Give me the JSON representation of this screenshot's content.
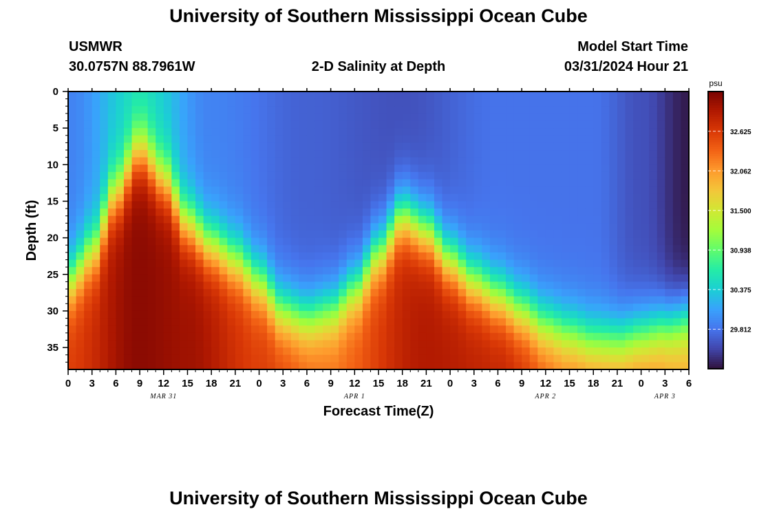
{
  "header": {
    "title": "University of Southern Mississippi Ocean Cube",
    "station": "USMWR",
    "coords": "30.0757N  88.7961W",
    "subtitle": "2-D Salinity at Depth",
    "start_label": "Model Start Time",
    "start_value": "03/31/2024 Hour 21"
  },
  "footer": {
    "title": "University of Southern Mississippi Ocean Cube"
  },
  "chart_data": {
    "type": "heatmap",
    "title": "2-D Salinity at Depth",
    "xlabel": "Forecast Time(Z)",
    "ylabel": "Depth (ft)",
    "x_ticks": [
      "0",
      "3",
      "6",
      "9",
      "12",
      "15",
      "18",
      "21",
      "0",
      "3",
      "6",
      "9",
      "12",
      "15",
      "18",
      "21",
      "0",
      "3",
      "6",
      "9",
      "12",
      "15",
      "18",
      "21",
      "0",
      "3",
      "6"
    ],
    "x_range_hours": [
      0,
      78
    ],
    "date_labels": [
      {
        "label": "MAR 31",
        "hour": 12
      },
      {
        "label": "APR 1",
        "hour": 36
      },
      {
        "label": "APR 2",
        "hour": 60
      },
      {
        "label": "APR 3",
        "hour": 75
      }
    ],
    "y_ticks": [
      "0",
      "5",
      "10",
      "15",
      "20",
      "25",
      "30",
      "35"
    ],
    "y_range": [
      0,
      38
    ],
    "y_inverted": true,
    "colorbar": {
      "unit": "psu",
      "min": 29.25,
      "max": 33.19,
      "tick_labels": [
        "32.625",
        "32.062",
        "31.500",
        "30.938",
        "30.375",
        "29.812"
      ],
      "colors": [
        "#30123b",
        "#4145ab",
        "#4675ed",
        "#39a2fc",
        "#1bcfd4",
        "#24eca6",
        "#61fc6c",
        "#a4fc3b",
        "#d1e834",
        "#f3c63a",
        "#fe9b2d",
        "#f36315",
        "#d93806",
        "#b11901",
        "#7a0402"
      ]
    },
    "halocline_depth_ft": [
      {
        "hour": 0,
        "depth": 26
      },
      {
        "hour": 3,
        "depth": 22
      },
      {
        "hour": 6,
        "depth": 14
      },
      {
        "hour": 9,
        "depth": 8
      },
      {
        "hour": 12,
        "depth": 12
      },
      {
        "hour": 15,
        "depth": 18
      },
      {
        "hour": 18,
        "depth": 21
      },
      {
        "hour": 21,
        "depth": 23
      },
      {
        "hour": 24,
        "depth": 26
      },
      {
        "hour": 27,
        "depth": 30
      },
      {
        "hour": 30,
        "depth": 31
      },
      {
        "hour": 33,
        "depth": 30
      },
      {
        "hour": 36,
        "depth": 27
      },
      {
        "hour": 39,
        "depth": 22
      },
      {
        "hour": 42,
        "depth": 17
      },
      {
        "hour": 45,
        "depth": 19
      },
      {
        "hour": 48,
        "depth": 23
      },
      {
        "hour": 51,
        "depth": 26
      },
      {
        "hour": 54,
        "depth": 28
      },
      {
        "hour": 57,
        "depth": 30
      },
      {
        "hour": 60,
        "depth": 32
      },
      {
        "hour": 63,
        "depth": 33
      },
      {
        "hour": 66,
        "depth": 34
      },
      {
        "hour": 69,
        "depth": 34
      },
      {
        "hour": 72,
        "depth": 33
      },
      {
        "hour": 75,
        "depth": 32
      },
      {
        "hour": 78,
        "depth": 31
      }
    ],
    "surface_salinity_psu": [
      {
        "hour": 0,
        "value": 29.9
      },
      {
        "hour": 9,
        "value": 30.5
      },
      {
        "hour": 18,
        "value": 29.9
      },
      {
        "hour": 30,
        "value": 29.7
      },
      {
        "hour": 42,
        "value": 29.6
      },
      {
        "hour": 54,
        "value": 29.8
      },
      {
        "hour": 66,
        "value": 29.8
      },
      {
        "hour": 72,
        "value": 29.6
      },
      {
        "hour": 78,
        "value": 29.3
      }
    ],
    "bottom_salinity_psu": [
      {
        "hour": 0,
        "value": 32.6
      },
      {
        "hour": 9,
        "value": 33.1
      },
      {
        "hour": 15,
        "value": 33.0
      },
      {
        "hour": 24,
        "value": 32.6
      },
      {
        "hour": 33,
        "value": 32.3
      },
      {
        "hour": 45,
        "value": 32.9
      },
      {
        "hour": 54,
        "value": 32.8
      },
      {
        "hour": 63,
        "value": 32.3
      },
      {
        "hour": 72,
        "value": 32.2
      },
      {
        "hour": 78,
        "value": 32.0
      }
    ]
  }
}
